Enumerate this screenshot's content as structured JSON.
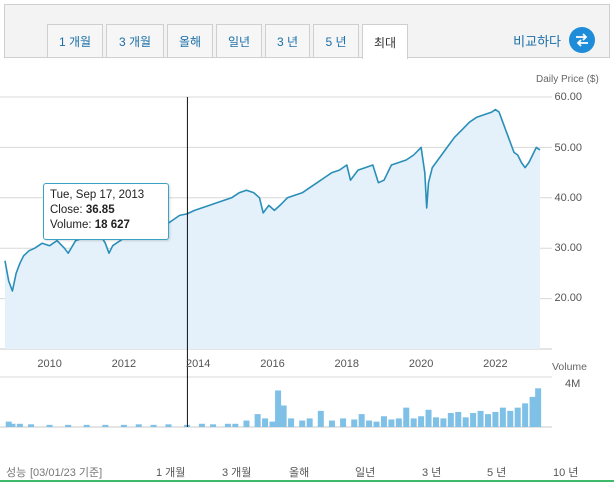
{
  "tabs": [
    {
      "label": "1 개월"
    },
    {
      "label": "3 개월"
    },
    {
      "label": "올해"
    },
    {
      "label": "일년"
    },
    {
      "label": "3 년"
    },
    {
      "label": "5 년"
    },
    {
      "label": "최대",
      "active": true
    }
  ],
  "compare": {
    "label": "비교하다",
    "icon": "swap-arrows-icon",
    "color": "#1d8cd9"
  },
  "price_axis_label": "Daily Price ($)",
  "volume_axis_label": "Volume",
  "volume_max_label": "4M",
  "tooltip": {
    "date": "Tue, Sep 17, 2013",
    "close_label": "Close:",
    "close_value": "36.85",
    "volume_label": "Volume:",
    "volume_value": "18 627"
  },
  "footer": {
    "performance_label": "성능",
    "as_of": "[03/01/23 기준]",
    "links": [
      "1 개월",
      "3 개월",
      "올해",
      "일년",
      "3 년",
      "5 년",
      "10 년"
    ]
  },
  "chart_data": {
    "type": "area",
    "line_color": "#2a8fb8",
    "fill_color": "#e4f0fa",
    "volume_color": "#7fc0e6",
    "ylim": [
      10,
      60
    ],
    "yticks": [
      "60.00",
      "50.00",
      "40.00",
      "30.00",
      "20.00"
    ],
    "xlim": [
      2008.8,
      2023.2
    ],
    "xticks": [
      "2010",
      "2012",
      "2014",
      "2016",
      "2018",
      "2020",
      "2022"
    ],
    "series": [
      {
        "x": [
          2008.8,
          2008.9,
          2009.0,
          2009.1,
          2009.2,
          2009.3,
          2009.45,
          2009.6,
          2009.8,
          2010.0,
          2010.2,
          2010.4,
          2010.5,
          2010.7,
          2010.9,
          2011.1,
          2011.3,
          2011.5,
          2011.6,
          2011.7,
          2011.9,
          2012.1,
          2012.3,
          2012.5,
          2012.7,
          2012.9,
          2013.1,
          2013.3,
          2013.5,
          2013.7,
          2013.9,
          2014.1,
          2014.3,
          2014.5,
          2014.7,
          2014.9,
          2015.1,
          2015.3,
          2015.5,
          2015.65,
          2015.75,
          2015.9,
          2016.05,
          2016.2,
          2016.4,
          2016.6,
          2016.8,
          2017.0,
          2017.2,
          2017.4,
          2017.6,
          2017.8,
          2018.0,
          2018.1,
          2018.3,
          2018.5,
          2018.7,
          2018.85,
          2019.0,
          2019.2,
          2019.4,
          2019.6,
          2019.8,
          2020.0,
          2020.1,
          2020.15,
          2020.2,
          2020.3,
          2020.5,
          2020.7,
          2020.9,
          2021.1,
          2021.3,
          2021.5,
          2021.7,
          2021.9,
          2022.0,
          2022.1,
          2022.2,
          2022.35,
          2022.5,
          2022.6,
          2022.7,
          2022.8,
          2022.9,
          2023.0,
          2023.1,
          2023.2
        ],
        "y": [
          27.5,
          23.5,
          21.5,
          25.0,
          27.0,
          28.5,
          29.5,
          30.0,
          31.0,
          30.5,
          31.5,
          30.0,
          29.0,
          31.5,
          32.0,
          33.0,
          33.5,
          31.0,
          29.0,
          30.5,
          31.5,
          32.5,
          33.5,
          33.0,
          34.0,
          33.0,
          34.5,
          35.5,
          36.5,
          36.8,
          37.5,
          38.0,
          38.5,
          39.0,
          39.5,
          40.0,
          41.0,
          41.5,
          41.0,
          40.0,
          37.0,
          38.5,
          37.5,
          38.5,
          40.0,
          40.5,
          41.0,
          42.0,
          43.0,
          44.0,
          45.0,
          45.5,
          46.5,
          43.5,
          45.5,
          46.0,
          46.5,
          43.0,
          43.5,
          46.5,
          47.0,
          47.5,
          48.5,
          50.0,
          45.0,
          38.0,
          43.0,
          46.0,
          48.0,
          50.0,
          52.0,
          53.5,
          55.0,
          56.0,
          56.5,
          57.0,
          57.5,
          57.0,
          55.0,
          52.0,
          49.0,
          48.5,
          47.0,
          46.0,
          47.0,
          48.5,
          50.0,
          49.5
        ]
      }
    ],
    "volume": {
      "x": [
        2008.9,
        2009.0,
        2009.2,
        2009.5,
        2010.0,
        2010.5,
        2011.0,
        2011.5,
        2012.0,
        2012.4,
        2012.8,
        2013.2,
        2013.7,
        2014.1,
        2014.4,
        2014.8,
        2015.0,
        2015.3,
        2015.6,
        2015.8,
        2016.0,
        2016.15,
        2016.3,
        2016.5,
        2016.8,
        2017.0,
        2017.3,
        2017.6,
        2017.9,
        2018.2,
        2018.4,
        2018.6,
        2018.8,
        2019.0,
        2019.2,
        2019.4,
        2019.6,
        2019.8,
        2020.0,
        2020.2,
        2020.4,
        2020.6,
        2020.8,
        2021.0,
        2021.2,
        2021.4,
        2021.6,
        2021.8,
        2022.0,
        2022.2,
        2022.4,
        2022.6,
        2022.8,
        2023.0,
        2023.15
      ],
      "values": [
        0.5,
        0.3,
        0.3,
        0.25,
        0.2,
        0.2,
        0.2,
        0.2,
        0.2,
        0.25,
        0.2,
        0.25,
        0.2,
        0.3,
        0.25,
        0.3,
        0.3,
        0.6,
        1.2,
        0.8,
        0.5,
        3.4,
        2.0,
        0.8,
        0.6,
        0.8,
        1.5,
        0.6,
        0.8,
        0.7,
        1.2,
        0.6,
        0.5,
        1.0,
        0.7,
        0.8,
        1.8,
        0.8,
        1.0,
        1.6,
        0.9,
        0.8,
        1.3,
        1.4,
        0.9,
        1.3,
        1.5,
        1.2,
        1.4,
        1.8,
        1.5,
        1.8,
        2.2,
        2.8,
        3.6
      ]
    }
  }
}
